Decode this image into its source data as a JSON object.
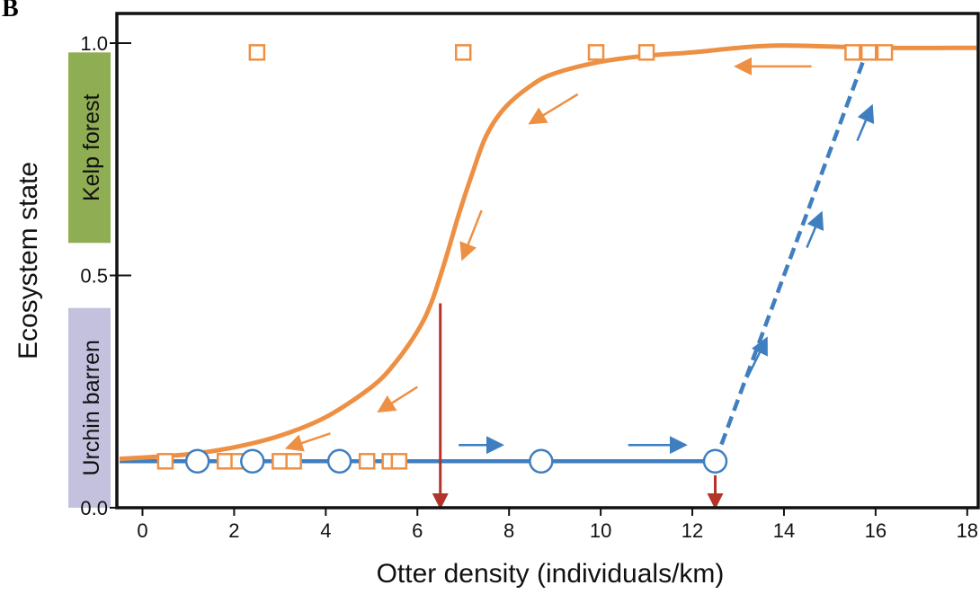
{
  "panel_letter": "B",
  "chart_data": {
    "type": "line",
    "xlabel": "Otter density (individuals/km)",
    "ylabel": "Ecosystem state",
    "xlim": [
      -0.5,
      18.2
    ],
    "ylim": [
      0.0,
      1.0
    ],
    "x_ticks": [
      0,
      2,
      4,
      6,
      8,
      10,
      12,
      14,
      16,
      18
    ],
    "y_ticks": [
      0.0,
      0.5,
      1.0
    ],
    "y_tick_labels": [
      "0.0",
      "0.5",
      "1.0"
    ],
    "grid": false,
    "state_bands": [
      {
        "label": "Kelp forest",
        "y0": 0.57,
        "y1": 0.98,
        "color": "#8fad52"
      },
      {
        "label": "Urchin barren",
        "y0": 0.0,
        "y1": 0.43,
        "color": "#c4c1df"
      }
    ],
    "colors": {
      "kelp_curve": "#ee9044",
      "barren_curve": "#3f7fc0",
      "threshold_arrow": "#b2342a"
    },
    "series": [
      {
        "role": "decline-curve",
        "marker": "square",
        "color": "#ee9044",
        "points": [
          [
            0.5,
            0.1
          ],
          [
            1.8,
            0.1
          ],
          [
            2.1,
            0.1
          ],
          [
            2.5,
            0.98
          ],
          [
            3.0,
            0.1
          ],
          [
            3.3,
            0.1
          ],
          [
            4.9,
            0.1
          ],
          [
            5.4,
            0.1
          ],
          [
            5.6,
            0.1
          ],
          [
            7.0,
            0.98
          ],
          [
            9.9,
            0.98
          ],
          [
            11.0,
            0.98
          ],
          [
            15.5,
            0.98
          ],
          [
            15.85,
            0.98
          ],
          [
            16.2,
            0.98
          ]
        ],
        "curve": [
          [
            -0.5,
            0.105
          ],
          [
            1.0,
            0.115
          ],
          [
            2.0,
            0.13
          ],
          [
            3.0,
            0.155
          ],
          [
            4.0,
            0.195
          ],
          [
            5.0,
            0.26
          ],
          [
            5.5,
            0.31
          ],
          [
            6.0,
            0.38
          ],
          [
            6.3,
            0.44
          ],
          [
            6.6,
            0.53
          ],
          [
            6.9,
            0.63
          ],
          [
            7.2,
            0.72
          ],
          [
            7.5,
            0.8
          ],
          [
            7.9,
            0.86
          ],
          [
            8.5,
            0.91
          ],
          [
            9.0,
            0.935
          ],
          [
            10.0,
            0.96
          ],
          [
            11.0,
            0.973
          ],
          [
            12.0,
            0.98
          ],
          [
            13.0,
            0.99
          ],
          [
            14.0,
            0.995
          ],
          [
            16.0,
            0.99
          ],
          [
            18.2,
            0.99
          ]
        ]
      },
      {
        "role": "recovery-curve",
        "marker": "circle",
        "color": "#3f7fc0",
        "points": [
          [
            1.2,
            0.1
          ],
          [
            2.4,
            0.1
          ],
          [
            4.3,
            0.1
          ],
          [
            8.7,
            0.1
          ],
          [
            12.5,
            0.1
          ]
        ],
        "curve_solid": [
          [
            -0.5,
            0.1
          ],
          [
            12.5,
            0.1
          ]
        ],
        "curve_dashed": [
          [
            12.5,
            0.1
          ],
          [
            15.8,
            0.98
          ]
        ]
      }
    ],
    "direction_arrows": [
      {
        "color": "#ee9044",
        "from": [
          14.6,
          0.95
        ],
        "to": [
          13.0,
          0.95
        ]
      },
      {
        "color": "#ee9044",
        "from": [
          9.5,
          0.89
        ],
        "to": [
          8.5,
          0.83
        ]
      },
      {
        "color": "#ee9044",
        "from": [
          7.4,
          0.64
        ],
        "to": [
          7.0,
          0.54
        ]
      },
      {
        "color": "#ee9044",
        "from": [
          6.0,
          0.26
        ],
        "to": [
          5.2,
          0.21
        ]
      },
      {
        "color": "#ee9044",
        "from": [
          4.1,
          0.16
        ],
        "to": [
          3.2,
          0.13
        ]
      },
      {
        "color": "#3f7fc0",
        "from": [
          6.9,
          0.135
        ],
        "to": [
          7.8,
          0.135
        ]
      },
      {
        "color": "#3f7fc0",
        "from": [
          10.6,
          0.135
        ],
        "to": [
          11.8,
          0.135
        ]
      },
      {
        "color": "#3f7fc0",
        "from": [
          13.2,
          0.28
        ],
        "to": [
          13.6,
          0.36
        ]
      },
      {
        "color": "#3f7fc0",
        "from": [
          14.5,
          0.56
        ],
        "to": [
          14.8,
          0.63
        ]
      },
      {
        "color": "#3f7fc0",
        "from": [
          15.6,
          0.79
        ],
        "to": [
          15.9,
          0.86
        ]
      }
    ],
    "threshold_arrows": [
      {
        "x": 6.5,
        "y_from": 0.44,
        "y_to": 0.0
      },
      {
        "x": 12.5,
        "y_from": 0.07,
        "y_to": 0.0
      }
    ]
  }
}
